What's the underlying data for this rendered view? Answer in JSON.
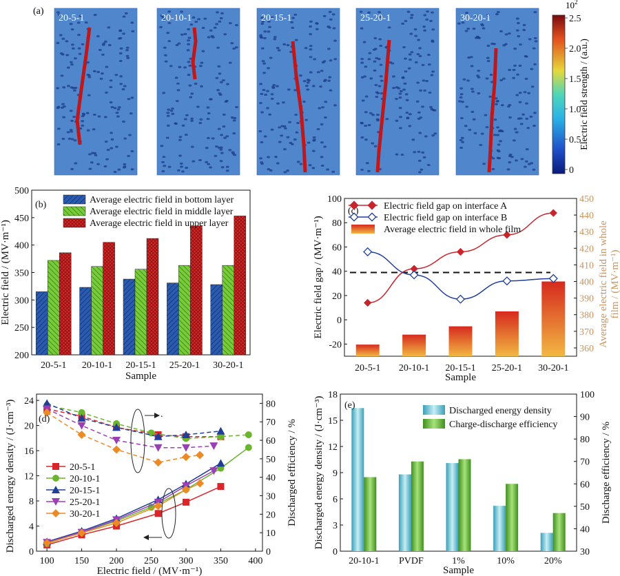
{
  "panel_a": {
    "panel_label": "(a)",
    "images": [
      {
        "label": "20-5-1"
      },
      {
        "label": "20-10-1"
      },
      {
        "label": "20-15-1"
      },
      {
        "label": "25-20-1"
      },
      {
        "label": "30-20-1"
      }
    ],
    "colorbar": {
      "title": "Electric field strength / (a.u.)",
      "exponent": "10",
      "exponent_power": "2",
      "ticks": [
        "0",
        "0.5",
        "1.0",
        "1.5",
        "2.0",
        "2.5"
      ],
      "tick_values": [
        0,
        0.5,
        1.0,
        1.5,
        2.0,
        2.5
      ],
      "range": [
        0,
        2.5
      ]
    }
  },
  "chart_data": [
    {
      "id": "b",
      "type": "bar",
      "panel_label": "(b)",
      "categories": [
        "20-5-1",
        "20-10-1",
        "20-15-1",
        "25-20-1",
        "30-20-1"
      ],
      "series": [
        {
          "name": "Average electric field in bottom layer",
          "values": [
            315,
            323,
            338,
            331,
            328
          ],
          "color": "#2b5bb0"
        },
        {
          "name": "Average electric field in middle layer",
          "values": [
            372,
            361,
            356,
            363,
            363
          ],
          "color": "#6cc02f"
        },
        {
          "name": "Average electric field in upper layer",
          "values": [
            386,
            405,
            412,
            435,
            453
          ],
          "color": "#d42a2a"
        }
      ],
      "xlabel": "Sample",
      "ylabel": "Electric field / (MV·m⁻¹)",
      "ylim": [
        200,
        500
      ],
      "yticks": [
        "200",
        "250",
        "300",
        "350",
        "400",
        "450",
        "500"
      ],
      "legend": "top-left"
    },
    {
      "id": "c",
      "type": "line",
      "panel_label": "(c)",
      "categories": [
        "20-5-1",
        "20-10-1",
        "20-15-1",
        "25-20-1",
        "30-20-1"
      ],
      "series": [
        {
          "name": "Electric field gap on interface A",
          "values": [
            14,
            42,
            56,
            70,
            88
          ],
          "axis": "left",
          "color": "#c8242b"
        },
        {
          "name": "Electric field gap on interface B",
          "values": [
            56,
            37,
            17,
            32,
            34
          ],
          "axis": "left",
          "color": "#1f3f9a"
        },
        {
          "name": "Average electric field in whole film",
          "values": [
            362,
            368,
            373,
            382,
            400
          ],
          "axis": "right",
          "kind": "bar",
          "color": "#e8a33a"
        }
      ],
      "reference_line": {
        "value": 39,
        "axis": "left",
        "style": "dashed"
      },
      "xlabel": "Sample",
      "ylabel": "Electric field gap / (MV·m⁻¹)",
      "ylabel_right": "Average electric field in whole film / (MV·m⁻¹)",
      "ylabel_right_lines": [
        "Average electric field in whole",
        "film / (MV·m⁻¹)"
      ],
      "ylim": [
        -30,
        100
      ],
      "ylim_right": [
        355,
        450
      ],
      "yticks": [
        "-20",
        "0",
        "20",
        "40",
        "60",
        "80",
        "100"
      ],
      "yticks_right": [
        "360",
        "370",
        "380",
        "390",
        "400",
        "410",
        "420",
        "430",
        "440",
        "450"
      ],
      "legend": "top-left"
    },
    {
      "id": "d",
      "type": "line",
      "panel_label": "(d)",
      "xlabel": "Electric field / (MV·m⁻¹)",
      "ylabel": "Discharged energy density / (J·cm⁻³)",
      "ylabel_right": "Discharged efficiency / %",
      "xlim": [
        85,
        410
      ],
      "ylim": [
        0,
        25
      ],
      "ylim_right": [
        0,
        85
      ],
      "xticks": [
        "100",
        "150",
        "200",
        "250",
        "300",
        "350",
        "400"
      ],
      "yticks": [
        "0",
        "4",
        "8",
        "12",
        "16",
        "20",
        "24"
      ],
      "yticks_right": [
        "0",
        "10",
        "20",
        "30",
        "40",
        "50",
        "60",
        "70",
        "80"
      ],
      "series": [
        {
          "name": "20-5-1",
          "color": "#d9262a",
          "marker": "square",
          "energy": {
            "x": [
              100,
              150,
              200,
              260,
              300,
              350
            ],
            "y": [
              1.0,
              2.6,
              4.0,
              6.0,
              7.8,
              10.3
            ]
          },
          "efficiency": {
            "x": [
              100,
              150,
              200,
              260,
              300,
              350
            ],
            "y": [
              77,
              73,
              67,
              63,
              62,
              62
            ]
          }
        },
        {
          "name": "20-10-1",
          "color": "#6ab42e",
          "marker": "circle",
          "energy": {
            "x": [
              100,
              150,
              200,
              250,
              300,
              350,
              390
            ],
            "y": [
              1.2,
              3.0,
              4.8,
              7.0,
              9.8,
              13.2,
              16.5
            ]
          },
          "efficiency": {
            "x": [
              100,
              150,
              200,
              250,
              300,
              350,
              390
            ],
            "y": [
              79,
              75,
              69,
              64,
              61,
              62,
              63
            ]
          }
        },
        {
          "name": "20-15-1",
          "color": "#1e3e9a",
          "marker": "triangle-up",
          "energy": {
            "x": [
              100,
              150,
              200,
              260,
              300,
              350
            ],
            "y": [
              1.5,
              3.2,
              5.2,
              8.2,
              10.7,
              14.0
            ]
          },
          "efficiency": {
            "x": [
              100,
              150,
              200,
              260,
              300,
              350
            ],
            "y": [
              80,
              72,
              67,
              62,
              63,
              65
            ]
          }
        },
        {
          "name": "25-20-1",
          "color": "#9b3fb5",
          "marker": "triangle-down",
          "energy": {
            "x": [
              100,
              150,
              200,
              260,
              300,
              340
            ],
            "y": [
              1.4,
              3.0,
              5.0,
              7.8,
              10.4,
              12.8
            ]
          },
          "efficiency": {
            "x": [
              100,
              150,
              200,
              260,
              300,
              340
            ],
            "y": [
              77,
              68,
              60,
              56,
              56,
              57
            ]
          }
        },
        {
          "name": "30-20-1",
          "color": "#ec8a25",
          "marker": "diamond",
          "energy": {
            "x": [
              100,
              150,
              200,
              260,
              300,
              320
            ],
            "y": [
              1.3,
              2.9,
              4.5,
              7.2,
              9.8,
              10.8
            ]
          },
          "efficiency": {
            "x": [
              100,
              150,
              200,
              260,
              300,
              320
            ],
            "y": [
              75,
              63,
              55,
              48,
              51,
              52
            ]
          }
        }
      ],
      "annotation": "."
    },
    {
      "id": "e",
      "type": "bar",
      "panel_label": "(e)",
      "categories": [
        "20-10-1",
        "PVDF",
        "1%",
        "10%",
        "20%"
      ],
      "series": [
        {
          "name": "Discharged energy density",
          "values": [
            16.4,
            8.8,
            10.1,
            5.2,
            2.1
          ],
          "axis": "left",
          "color": "#5bbfd0"
        },
        {
          "name": "Charge-discharge efficiency",
          "values": [
            63,
            70,
            71,
            60,
            47
          ],
          "axis": "right",
          "color": "#62b531"
        }
      ],
      "xlabel": "Sample",
      "ylabel": "Discharged energy density / (J·cm⁻³)",
      "ylabel_right": "Discharge efficiency / %",
      "ylim": [
        0,
        18
      ],
      "ylim_right": [
        30,
        100
      ],
      "yticks": [
        "0",
        "3",
        "6",
        "9",
        "12",
        "15",
        "18"
      ],
      "yticks_right": [
        "30",
        "40",
        "50",
        "60",
        "70",
        "80",
        "90",
        "100"
      ],
      "legend": "top-right"
    }
  ]
}
